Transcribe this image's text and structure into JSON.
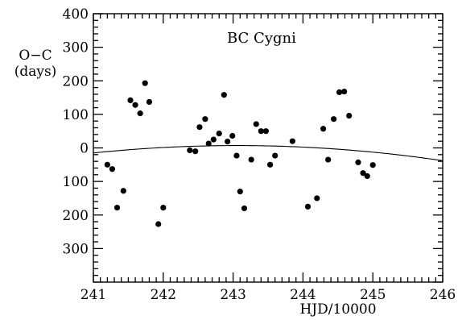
{
  "chart_data": {
    "type": "scatter",
    "title": "BC Cygni",
    "xlabel": "HJD/10000",
    "ylabel_lines": [
      "O−C",
      "(days)"
    ],
    "xlim": [
      241,
      246
    ],
    "ylim": [
      -400,
      400
    ],
    "x_ticks": [
      241,
      242,
      243,
      244,
      245,
      246
    ],
    "y_ticks": [
      400,
      300,
      200,
      100,
      0,
      -100,
      -200,
      -300
    ],
    "y_tick_labels": [
      "400",
      "300",
      "200",
      "100",
      "0",
      "100",
      "200",
      "300"
    ],
    "grid": false,
    "series": [
      {
        "points": [
          [
            241.2,
            -50
          ],
          [
            241.27,
            -63
          ],
          [
            241.34,
            -178
          ],
          [
            241.43,
            -128
          ],
          [
            241.53,
            142
          ],
          [
            241.6,
            128
          ],
          [
            241.67,
            103
          ],
          [
            241.74,
            193
          ],
          [
            241.8,
            137
          ],
          [
            241.93,
            -227
          ],
          [
            242.0,
            -178
          ],
          [
            242.38,
            -7
          ],
          [
            242.46,
            -10
          ],
          [
            242.52,
            62
          ],
          [
            242.6,
            86
          ],
          [
            242.65,
            13
          ],
          [
            242.72,
            25
          ],
          [
            242.8,
            43
          ],
          [
            242.87,
            158
          ],
          [
            242.92,
            19
          ],
          [
            242.99,
            36
          ],
          [
            243.05,
            -23
          ],
          [
            243.1,
            -130
          ],
          [
            243.16,
            -180
          ],
          [
            243.26,
            -35
          ],
          [
            243.33,
            71
          ],
          [
            243.4,
            50
          ],
          [
            243.47,
            50
          ],
          [
            243.53,
            -50
          ],
          [
            243.6,
            -23
          ],
          [
            243.85,
            20
          ],
          [
            244.07,
            -175
          ],
          [
            244.2,
            -150
          ],
          [
            244.29,
            57
          ],
          [
            244.36,
            -35
          ],
          [
            244.44,
            86
          ],
          [
            244.52,
            166
          ],
          [
            244.59,
            168
          ],
          [
            244.66,
            96
          ],
          [
            244.79,
            -43
          ],
          [
            244.86,
            -75
          ],
          [
            244.92,
            -84
          ],
          [
            245.0,
            -51
          ]
        ]
      }
    ],
    "fit_curve": {
      "type": "quadratic",
      "points": [
        [
          241,
          -15
        ],
        [
          243,
          7
        ],
        [
          246,
          -38
        ]
      ]
    }
  }
}
